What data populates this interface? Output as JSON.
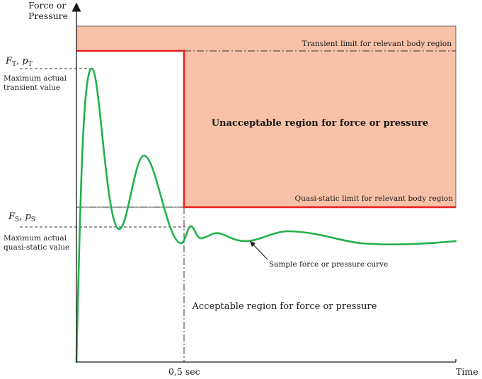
{
  "axes": {
    "y_label_line1": "Force or",
    "y_label_line2": "Pressure",
    "x_label": "Time",
    "x_tick": "0,5 sec"
  },
  "left_labels": {
    "transient_symbol_main": "F",
    "transient_symbol_sub": "T",
    "transient_symbol_sep": ", ",
    "transient_symbol_main2": "p",
    "transient_symbol_sub2": "T",
    "transient_caption_line1": "Maximum actual",
    "transient_caption_line2": "transient value",
    "static_symbol_main": "F",
    "static_symbol_sub": "S",
    "static_symbol_sep": ", ",
    "static_symbol_main2": "p",
    "static_symbol_sub2": "S",
    "static_caption_line1": "Maximum actual",
    "static_caption_line2": "quasi-static value"
  },
  "annotations": {
    "transient_limit": "Transient limit for relevant body region",
    "quasi_static_limit": "Quasi-static limit for relevant body region",
    "unacceptable_region": "Unacceptable region for force or pressure",
    "acceptable_region": "Acceptable region for force or pressure",
    "sample_curve": "Sample force or pressure curve"
  },
  "colors": {
    "unacceptable_fill": "#f9c2a8",
    "limit_line": "#e8201e",
    "curve": "#21b14b",
    "axis": "#1a1a1a",
    "dash": "#333333"
  }
}
